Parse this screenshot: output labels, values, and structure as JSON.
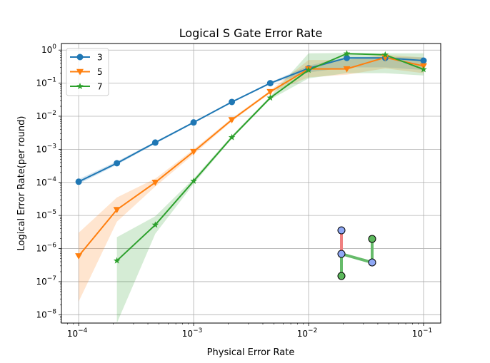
{
  "chart_data": {
    "type": "line",
    "title": "Logical S Gate Error Rate",
    "xlabel": "Physical Error Rate",
    "ylabel": "Logical Error Rate(per round)",
    "xscale": "log",
    "yscale": "log",
    "xlim": [
      7.08e-05,
      0.141
    ],
    "ylim": [
      5.6e-09,
      1.58
    ],
    "x_ticks": [
      {
        "value": 0.0001,
        "mant": "10",
        "exp": "−4"
      },
      {
        "value": 0.001,
        "mant": "10",
        "exp": "−3"
      },
      {
        "value": 0.01,
        "mant": "10",
        "exp": "−2"
      },
      {
        "value": 0.1,
        "mant": "10",
        "exp": "−1"
      }
    ],
    "y_ticks": [
      {
        "value": 1e-08,
        "mant": "10",
        "exp": "−8"
      },
      {
        "value": 1e-07,
        "mant": "10",
        "exp": "−7"
      },
      {
        "value": 1e-06,
        "mant": "10",
        "exp": "−6"
      },
      {
        "value": 1e-05,
        "mant": "10",
        "exp": "−5"
      },
      {
        "value": 0.0001,
        "mant": "10",
        "exp": "−4"
      },
      {
        "value": 0.001,
        "mant": "10",
        "exp": "−3"
      },
      {
        "value": 0.01,
        "mant": "10",
        "exp": "−2"
      },
      {
        "value": 0.1,
        "mant": "10",
        "exp": "−1"
      },
      {
        "value": 1,
        "mant": "10",
        "exp": "0"
      }
    ],
    "grid": true,
    "legend_position": "top-left",
    "series": [
      {
        "name": "3",
        "color": "#1f77b4",
        "marker": "circle",
        "x": [
          0.0001,
          0.000215,
          0.000464,
          0.001,
          0.00215,
          0.00464,
          0.01,
          0.0215,
          0.0464,
          0.1
        ],
        "y": [
          0.000105,
          0.00038,
          0.0016,
          0.0065,
          0.027,
          0.1,
          0.28,
          0.58,
          0.58,
          0.48
        ],
        "lower": [
          9e-05,
          0.00034,
          0.00148,
          0.0061,
          0.0256,
          0.095,
          0.21,
          0.3,
          0.3,
          0.25
        ],
        "upper": [
          0.000125,
          0.00043,
          0.00172,
          0.0069,
          0.0285,
          0.106,
          0.34,
          0.62,
          0.62,
          0.6
        ]
      },
      {
        "name": "5",
        "color": "#ff7f0e",
        "marker": "triangle-down",
        "x": [
          0.0001,
          0.000215,
          0.000464,
          0.001,
          0.00215,
          0.00464,
          0.01,
          0.0215,
          0.0464,
          0.1
        ],
        "y": [
          6e-07,
          1.5e-05,
          0.0001,
          0.00085,
          0.0078,
          0.055,
          0.27,
          0.27,
          0.6,
          0.33
        ],
        "lower": [
          2.5e-08,
          6.5e-06,
          7.5e-05,
          0.0007,
          0.007,
          0.05,
          0.15,
          0.18,
          0.28,
          0.2
        ],
        "upper": [
          3e-06,
          3.5e-05,
          0.00013,
          0.001,
          0.0087,
          0.06,
          0.5,
          0.5,
          0.72,
          0.6
        ]
      },
      {
        "name": "7",
        "color": "#2ca02c",
        "marker": "star",
        "x": [
          0.000215,
          0.000464,
          0.001,
          0.00215,
          0.00464,
          0.01,
          0.0215,
          0.0464,
          0.1
        ],
        "y": [
          4.3e-07,
          5.2e-06,
          0.00011,
          0.0023,
          0.036,
          0.25,
          0.78,
          0.72,
          0.26
        ],
        "lower": [
          5.6e-09,
          2.8e-06,
          9e-05,
          0.0021,
          0.032,
          0.14,
          0.2,
          0.2,
          0.17
        ],
        "upper": [
          2.2e-06,
          9.5e-06,
          0.00013,
          0.0026,
          0.04,
          0.8,
          0.82,
          0.8,
          0.8
        ]
      }
    ]
  }
}
